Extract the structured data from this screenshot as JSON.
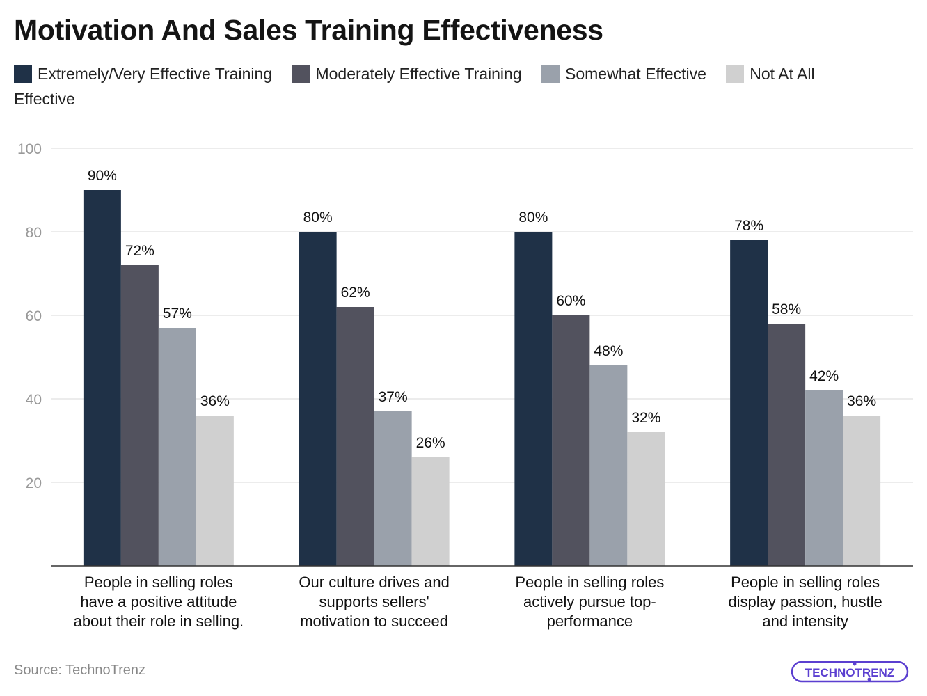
{
  "title": "Motivation And Sales Training Effectiveness",
  "source": "Source: TechnoTrenz",
  "logo_text": "TECHNOTRENZ",
  "colors": {
    "series": [
      "#1f3147",
      "#52525e",
      "#9aa1ab",
      "#d0d0d0"
    ],
    "grid": "#e6e6e6",
    "axis": "#333333",
    "logo": "#5b3fd0"
  },
  "chart_data": {
    "type": "bar",
    "title": "Motivation And Sales Training Effectiveness",
    "xlabel": "",
    "ylabel": "",
    "ylim": [
      0,
      100
    ],
    "yticks": [
      20,
      40,
      60,
      80,
      100
    ],
    "grid": true,
    "legend_position": "top-left",
    "categories": [
      [
        "People in selling roles",
        "have a positive attitude",
        "about their role in selling."
      ],
      [
        "Our culture drives and",
        "supports sellers'",
        "motivation to succeed"
      ],
      [
        "People in selling roles",
        "actively pursue top-",
        "performance"
      ],
      [
        "People in selling roles",
        "display passion, hustle",
        "and intensity"
      ]
    ],
    "series": [
      {
        "name": "Extremely/Very Effective Training",
        "values": [
          90,
          80,
          80,
          78
        ],
        "labels": [
          "90%",
          "80%",
          "80%",
          "78%"
        ]
      },
      {
        "name": "Moderately Effective Training",
        "values": [
          72,
          62,
          60,
          58
        ],
        "labels": [
          "72%",
          "62%",
          "60%",
          "58%"
        ]
      },
      {
        "name": "Somewhat Effective",
        "values": [
          57,
          37,
          48,
          42
        ],
        "labels": [
          "57%",
          "37%",
          "48%",
          "42%"
        ]
      },
      {
        "name": "Not At All Effective",
        "values": [
          36,
          26,
          32,
          36
        ],
        "labels": [
          "36%",
          "26%",
          "32%",
          "36%"
        ]
      }
    ]
  }
}
